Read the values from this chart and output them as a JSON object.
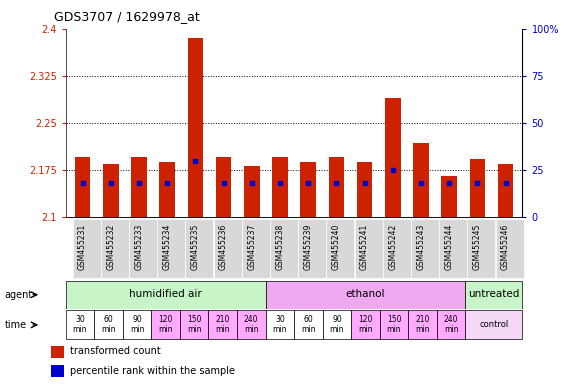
{
  "title": "GDS3707 / 1629978_at",
  "samples": [
    "GSM455231",
    "GSM455232",
    "GSM455233",
    "GSM455234",
    "GSM455235",
    "GSM455236",
    "GSM455237",
    "GSM455238",
    "GSM455239",
    "GSM455240",
    "GSM455241",
    "GSM455242",
    "GSM455243",
    "GSM455244",
    "GSM455245",
    "GSM455246"
  ],
  "transformed_count": [
    2.195,
    2.185,
    2.196,
    2.187,
    2.385,
    2.196,
    2.182,
    2.196,
    2.188,
    2.196,
    2.187,
    2.29,
    2.218,
    2.165,
    2.193,
    2.185
  ],
  "percentile_rank": [
    18,
    18,
    18,
    18,
    30,
    18,
    18,
    18,
    18,
    18,
    18,
    25,
    18,
    18,
    18,
    18
  ],
  "ymin": 2.1,
  "ymax": 2.4,
  "yticks": [
    2.1,
    2.175,
    2.25,
    2.325,
    2.4
  ],
  "ytick_labels": [
    "2.1",
    "2.175",
    "2.25",
    "2.325",
    "2.4"
  ],
  "right_yticks": [
    0,
    25,
    50,
    75,
    100
  ],
  "right_ytick_labels": [
    "0",
    "25",
    "50",
    "75",
    "100%"
  ],
  "agent_groups": [
    {
      "label": "humidified air",
      "start": 0,
      "end": 7,
      "color": "#c8f5c8"
    },
    {
      "label": "ethanol",
      "start": 7,
      "end": 14,
      "color": "#f0a8f0"
    },
    {
      "label": "untreated",
      "start": 14,
      "end": 16,
      "color": "#c8f5c8"
    }
  ],
  "time_labels_14": [
    "30\nmin",
    "60\nmin",
    "90\nmin",
    "120\nmin",
    "150\nmin",
    "210\nmin",
    "240\nmin",
    "30\nmin",
    "60\nmin",
    "90\nmin",
    "120\nmin",
    "150\nmin",
    "210\nmin",
    "240\nmin"
  ],
  "time_colors_14": [
    "#ffffff",
    "#ffffff",
    "#ffffff",
    "#ffaaff",
    "#ffaaff",
    "#ffaaff",
    "#ffaaff",
    "#ffffff",
    "#ffffff",
    "#ffffff",
    "#ffaaff",
    "#ffaaff",
    "#ffaaff",
    "#ffaaff"
  ],
  "time_control_color": "#f5d8f5",
  "bar_color": "#cc2200",
  "percentile_color": "#0000cc",
  "background_color": "#ffffff",
  "grid_color": "#000000",
  "left_tick_color": "#cc2200",
  "right_tick_color": "#0000cc",
  "bar_width": 0.55,
  "label_bg_color": "#d8d8d8"
}
